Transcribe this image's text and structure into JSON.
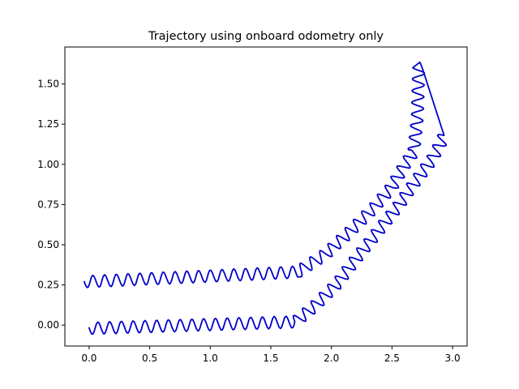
{
  "chart_data": {
    "type": "line",
    "title": "Trajectory using onboard odometry only",
    "xlabel": "",
    "ylabel": "",
    "xlim": [
      -0.2,
      3.12
    ],
    "ylim": [
      -0.13,
      1.73
    ],
    "x_ticks": [
      0.0,
      0.5,
      1.0,
      1.5,
      2.0,
      2.5,
      3.0
    ],
    "x_tick_labels": [
      "0.0",
      "0.5",
      "1.0",
      "1.5",
      "2.0",
      "2.5",
      "3.0"
    ],
    "y_ticks": [
      0.0,
      0.25,
      0.5,
      0.75,
      1.0,
      1.25,
      1.5
    ],
    "y_tick_labels": [
      "0.00",
      "0.25",
      "0.50",
      "0.75",
      "1.00",
      "1.25",
      "1.50"
    ],
    "grid": false,
    "legend": "none",
    "series": [
      {
        "color": "#0000cc",
        "style": "solid line with small-amplitude oscillation (odometry jitter)",
        "points": [
          {
            "x": -0.04,
            "y": 0.27
          },
          {
            "x": 1.72,
            "y": 0.33
          },
          {
            "x": 1.95,
            "y": 0.44
          },
          {
            "x": 2.15,
            "y": 0.58
          },
          {
            "x": 2.35,
            "y": 0.73
          },
          {
            "x": 2.5,
            "y": 0.86
          },
          {
            "x": 2.6,
            "y": 0.99
          },
          {
            "x": 2.68,
            "y": 1.08
          },
          {
            "x": 2.71,
            "y": 1.3
          },
          {
            "x": 2.72,
            "y": 1.6
          },
          {
            "x": 2.75,
            "y": 1.6
          },
          {
            "x": 2.93,
            "y": 1.18
          },
          {
            "x": 2.9,
            "y": 1.13
          },
          {
            "x": 2.83,
            "y": 1.03
          },
          {
            "x": 2.7,
            "y": 0.9
          },
          {
            "x": 2.55,
            "y": 0.74
          },
          {
            "x": 2.35,
            "y": 0.55
          },
          {
            "x": 2.2,
            "y": 0.41
          },
          {
            "x": 2.05,
            "y": 0.26
          },
          {
            "x": 1.85,
            "y": 0.11
          },
          {
            "x": 1.7,
            "y": 0.02
          },
          {
            "x": 0.0,
            "y": -0.02
          }
        ]
      }
    ]
  }
}
